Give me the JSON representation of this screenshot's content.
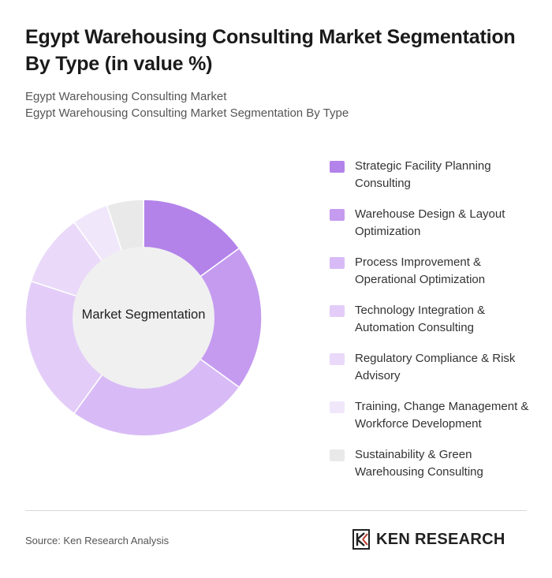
{
  "header": {
    "title": "Egypt Warehousing Consulting Market Segmentation By Type (in value %)",
    "subtitle_1": "Egypt Warehousing Consulting Market",
    "subtitle_2": "Egypt Warehousing Consulting Market Segmentation By Type"
  },
  "chart_data": {
    "type": "pie",
    "subtype": "donut",
    "center_label": "Market Segmentation",
    "legend_position": "right",
    "categories": [
      "Strategic Facility Planning Consulting",
      "Warehouse Design & Layout Optimization",
      "Process Improvement & Operational Optimization",
      "Technology Integration & Automation Consulting",
      "Regulatory Compliance & Risk Advisory",
      "Training, Change Management & Workforce Development",
      "Sustainability & Green Warehousing Consulting"
    ],
    "values": [
      15,
      20,
      25,
      20,
      10,
      5,
      5
    ],
    "colors": [
      "#b383ea",
      "#c59bf0",
      "#d8bbf6",
      "#e3cdf8",
      "#ead9f9",
      "#f1e7fb",
      "#e9e9e9"
    ]
  },
  "footer": {
    "source": "Source: Ken Research Analysis",
    "brand": "KEN RESEARCH"
  }
}
